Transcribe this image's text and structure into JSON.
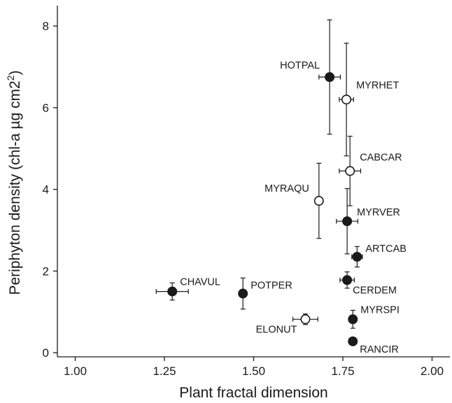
{
  "chart_data": {
    "type": "scatter",
    "xlabel": "Plant fractal dimension",
    "ylabel": "Periphyton density (chl-a µg cm2)",
    "ylabel_superscript": "2",
    "xlim": [
      0.95,
      2.05
    ],
    "ylim": [
      -0.1,
      8.5
    ],
    "xticks": [
      1.0,
      1.25,
      1.5,
      1.75,
      2.0
    ],
    "xtick_labels": [
      "1.00",
      "1.25",
      "1.50",
      "1.75",
      "2.00"
    ],
    "yticks": [
      0,
      2,
      4,
      6,
      8
    ],
    "ytick_labels": [
      "0",
      "2",
      "4",
      "6",
      "8"
    ],
    "grid": false,
    "legend": "none",
    "marker_colors": {
      "filled": "#1a1a1a",
      "open": "#ffffff",
      "stroke": "#1a1a1a"
    },
    "points": [
      {
        "label": "HOTPAL",
        "x": 1.713,
        "y": 6.75,
        "xerr": 0.03,
        "yerr": 1.4,
        "filled": true
      },
      {
        "label": "MYRHET",
        "x": 1.76,
        "y": 6.2,
        "xerr": 0.02,
        "yerr": 1.38,
        "filled": false
      },
      {
        "label": "CABCAR",
        "x": 1.77,
        "y": 4.45,
        "xerr": 0.03,
        "yerr": 0.85,
        "filled": false
      },
      {
        "label": "MYRAQU",
        "x": 1.683,
        "y": 3.72,
        "xerr": 0.0,
        "yerr": 0.92,
        "filled": false
      },
      {
        "label": "MYRVER",
        "x": 1.762,
        "y": 3.22,
        "xerr": 0.03,
        "yerr": 0.8,
        "filled": true
      },
      {
        "label": "ARTCAB",
        "x": 1.79,
        "y": 2.35,
        "xerr": 0.015,
        "yerr": 0.25,
        "filled": true
      },
      {
        "label": "CERDEM",
        "x": 1.762,
        "y": 1.78,
        "xerr": 0.02,
        "yerr": 0.2,
        "filled": true
      },
      {
        "label": "CHAVUL",
        "x": 1.272,
        "y": 1.5,
        "xerr": 0.045,
        "yerr": 0.21,
        "filled": true
      },
      {
        "label": "POTPER",
        "x": 1.47,
        "y": 1.45,
        "xerr": 0.01,
        "yerr": 0.38,
        "filled": true
      },
      {
        "label": "ELONUT",
        "x": 1.645,
        "y": 0.82,
        "xerr": 0.035,
        "yerr": 0.13,
        "filled": false
      },
      {
        "label": "MYRSPI",
        "x": 1.778,
        "y": 0.82,
        "xerr": 0.008,
        "yerr": 0.22,
        "filled": true
      },
      {
        "label": "RANCIR",
        "x": 1.778,
        "y": 0.28,
        "xerr": 0.008,
        "yerr": 0.05,
        "filled": true
      }
    ]
  }
}
